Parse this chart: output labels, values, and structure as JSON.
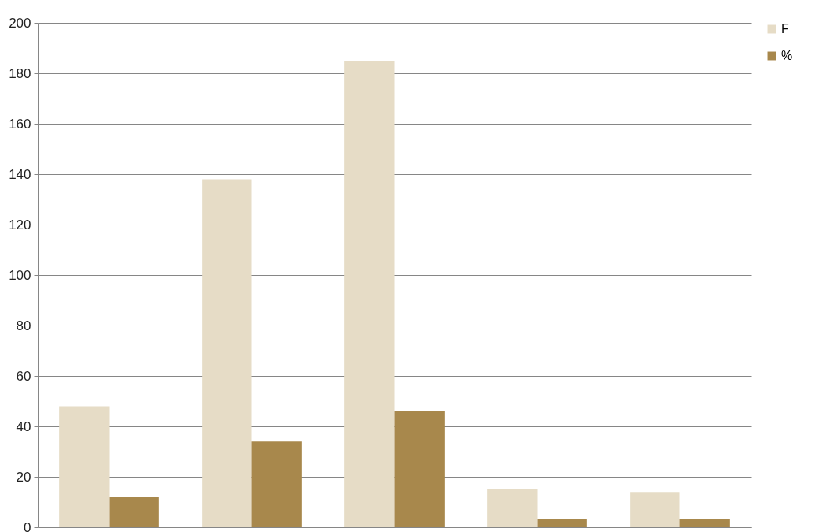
{
  "chart_data": {
    "type": "bar",
    "categories": [
      null,
      null,
      null,
      null,
      null
    ],
    "series": [
      {
        "name": "F",
        "color": "#e6dcc6",
        "values": [
          48,
          138,
          185,
          15,
          14
        ]
      },
      {
        "name": "%",
        "color": "#a8884c",
        "values": [
          12,
          34,
          46,
          3.4,
          3.1
        ]
      }
    ],
    "ylim": [
      0,
      200
    ],
    "yticks": [
      0,
      20,
      40,
      60,
      80,
      100,
      120,
      140,
      160,
      180,
      200
    ],
    "grid": "y",
    "legend": "right",
    "tick_labels": "y"
  }
}
